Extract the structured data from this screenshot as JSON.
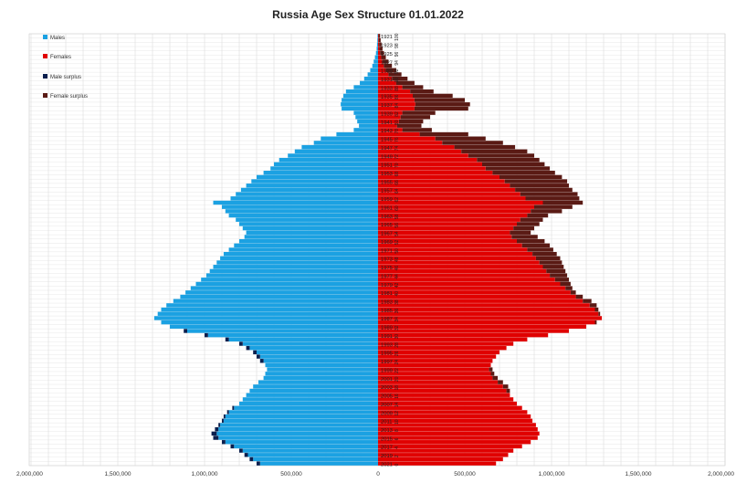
{
  "chart_data": {
    "type": "bar",
    "orientation": "horizontal-population-pyramid",
    "title": "Russia Age Sex Structure 01.01.2022",
    "x_ticks": [
      "2,000,000",
      "1,500,000",
      "1,000,000",
      "500,000",
      "0",
      "500,000",
      "1,000,000",
      "1,500,000",
      "2,000,000"
    ],
    "xlim": [
      -2000000,
      2000000
    ],
    "grid": true,
    "legend_position": "top-left",
    "legend": [
      {
        "label": "Males",
        "color": "#1ba1e2"
      },
      {
        "label": "Females",
        "color": "#e00000"
      },
      {
        "label": "Male surplus",
        "color": "#0a1f4e"
      },
      {
        "label": "Female surplus",
        "color": "#5a1a14"
      }
    ],
    "birth_years": [
      1921,
      1922,
      1923,
      1924,
      1925,
      1926,
      1927,
      1928,
      1929,
      1930,
      1931,
      1932,
      1933,
      1934,
      1935,
      1936,
      1937,
      1938,
      1939,
      1940,
      1941,
      1942,
      1943,
      1944,
      1945,
      1946,
      1947,
      1948,
      1949,
      1950,
      1951,
      1952,
      1953,
      1954,
      1955,
      1956,
      1957,
      1958,
      1959,
      1960,
      1961,
      1962,
      1963,
      1964,
      1965,
      1966,
      1967,
      1968,
      1969,
      1970,
      1971,
      1972,
      1973,
      1974,
      1975,
      1976,
      1977,
      1978,
      1979,
      1980,
      1981,
      1982,
      1983,
      1984,
      1985,
      1986,
      1987,
      1988,
      1989,
      1990,
      1991,
      1992,
      1993,
      1994,
      1995,
      1996,
      1997,
      1998,
      1999,
      2000,
      2001,
      2002,
      2003,
      2004,
      2005,
      2006,
      2007,
      2008,
      2009,
      2010,
      2011,
      2012,
      2013,
      2014,
      2015,
      2016,
      2017,
      2018,
      2019,
      2020,
      2021
    ],
    "year_labels": [
      "1921",
      "1923",
      "1925",
      "1927",
      "1929",
      "1931",
      "1933",
      "1935",
      "1937",
      "1939",
      "1941",
      "1943",
      "1945",
      "1947",
      "1949",
      "1951",
      "1953",
      "1955",
      "1957",
      "1959",
      "1961",
      "1963",
      "1965",
      "1967",
      "1969",
      "1971",
      "1973",
      "1975",
      "1977",
      "1979",
      "1981",
      "1983",
      "1985",
      "1987",
      "1989",
      "1991",
      "1993",
      "1995",
      "1997",
      "1999",
      "2001",
      "2003",
      "2005",
      "2007",
      "2009",
      "2011",
      "2013",
      "2015",
      "2017",
      "2019",
      "2021"
    ],
    "age_labels": [
      "100",
      "98",
      "96",
      "94",
      "92",
      "90",
      "88",
      "86",
      "84",
      "82",
      "80",
      "78",
      "76",
      "74",
      "72",
      "70",
      "68",
      "66",
      "64",
      "62",
      "60",
      "58",
      "56",
      "54",
      "52",
      "50",
      "48",
      "46",
      "44",
      "42",
      "40",
      "38",
      "36",
      "34",
      "32",
      "30",
      "28",
      "26",
      "24",
      "22",
      "20",
      "18",
      "16",
      "14",
      "12",
      "10",
      "8",
      "6",
      "4",
      "2",
      "0"
    ],
    "males": [
      3000,
      4000,
      6000,
      8000,
      12000,
      18000,
      25000,
      33000,
      45000,
      60000,
      80000,
      105000,
      140000,
      185000,
      200000,
      210000,
      215000,
      210000,
      140000,
      130000,
      120000,
      110000,
      140000,
      240000,
      330000,
      370000,
      440000,
      480000,
      520000,
      570000,
      600000,
      620000,
      660000,
      700000,
      730000,
      760000,
      790000,
      820000,
      850000,
      950000,
      900000,
      880000,
      860000,
      820000,
      800000,
      780000,
      760000,
      770000,
      800000,
      830000,
      860000,
      890000,
      910000,
      930000,
      950000,
      970000,
      990000,
      1020000,
      1050000,
      1080000,
      1110000,
      1140000,
      1180000,
      1220000,
      1250000,
      1270000,
      1290000,
      1250000,
      1200000,
      1120000,
      1000000,
      880000,
      800000,
      760000,
      720000,
      700000,
      680000,
      650000,
      640000,
      650000,
      660000,
      690000,
      720000,
      740000,
      760000,
      780000,
      800000,
      840000,
      870000,
      890000,
      900000,
      920000,
      940000,
      960000,
      950000,
      900000,
      850000,
      800000,
      770000,
      740000,
      700000
    ],
    "females": [
      12000,
      15000,
      20000,
      26000,
      34000,
      45000,
      60000,
      80000,
      105000,
      135000,
      170000,
      210000,
      260000,
      320000,
      430000,
      500000,
      530000,
      520000,
      330000,
      300000,
      260000,
      250000,
      310000,
      520000,
      620000,
      720000,
      790000,
      860000,
      900000,
      930000,
      960000,
      990000,
      1020000,
      1060000,
      1090000,
      1100000,
      1120000,
      1150000,
      1160000,
      1180000,
      1120000,
      1060000,
      980000,
      950000,
      930000,
      900000,
      880000,
      920000,
      960000,
      990000,
      1010000,
      1030000,
      1050000,
      1060000,
      1070000,
      1080000,
      1090000,
      1100000,
      1110000,
      1120000,
      1140000,
      1180000,
      1230000,
      1260000,
      1270000,
      1280000,
      1290000,
      1260000,
      1200000,
      1100000,
      980000,
      860000,
      780000,
      740000,
      700000,
      680000,
      660000,
      650000,
      660000,
      670000,
      690000,
      720000,
      750000,
      760000,
      760000,
      780000,
      800000,
      830000,
      860000,
      880000,
      890000,
      910000,
      920000,
      930000,
      920000,
      880000,
      830000,
      780000,
      750000,
      720000,
      680000
    ]
  }
}
